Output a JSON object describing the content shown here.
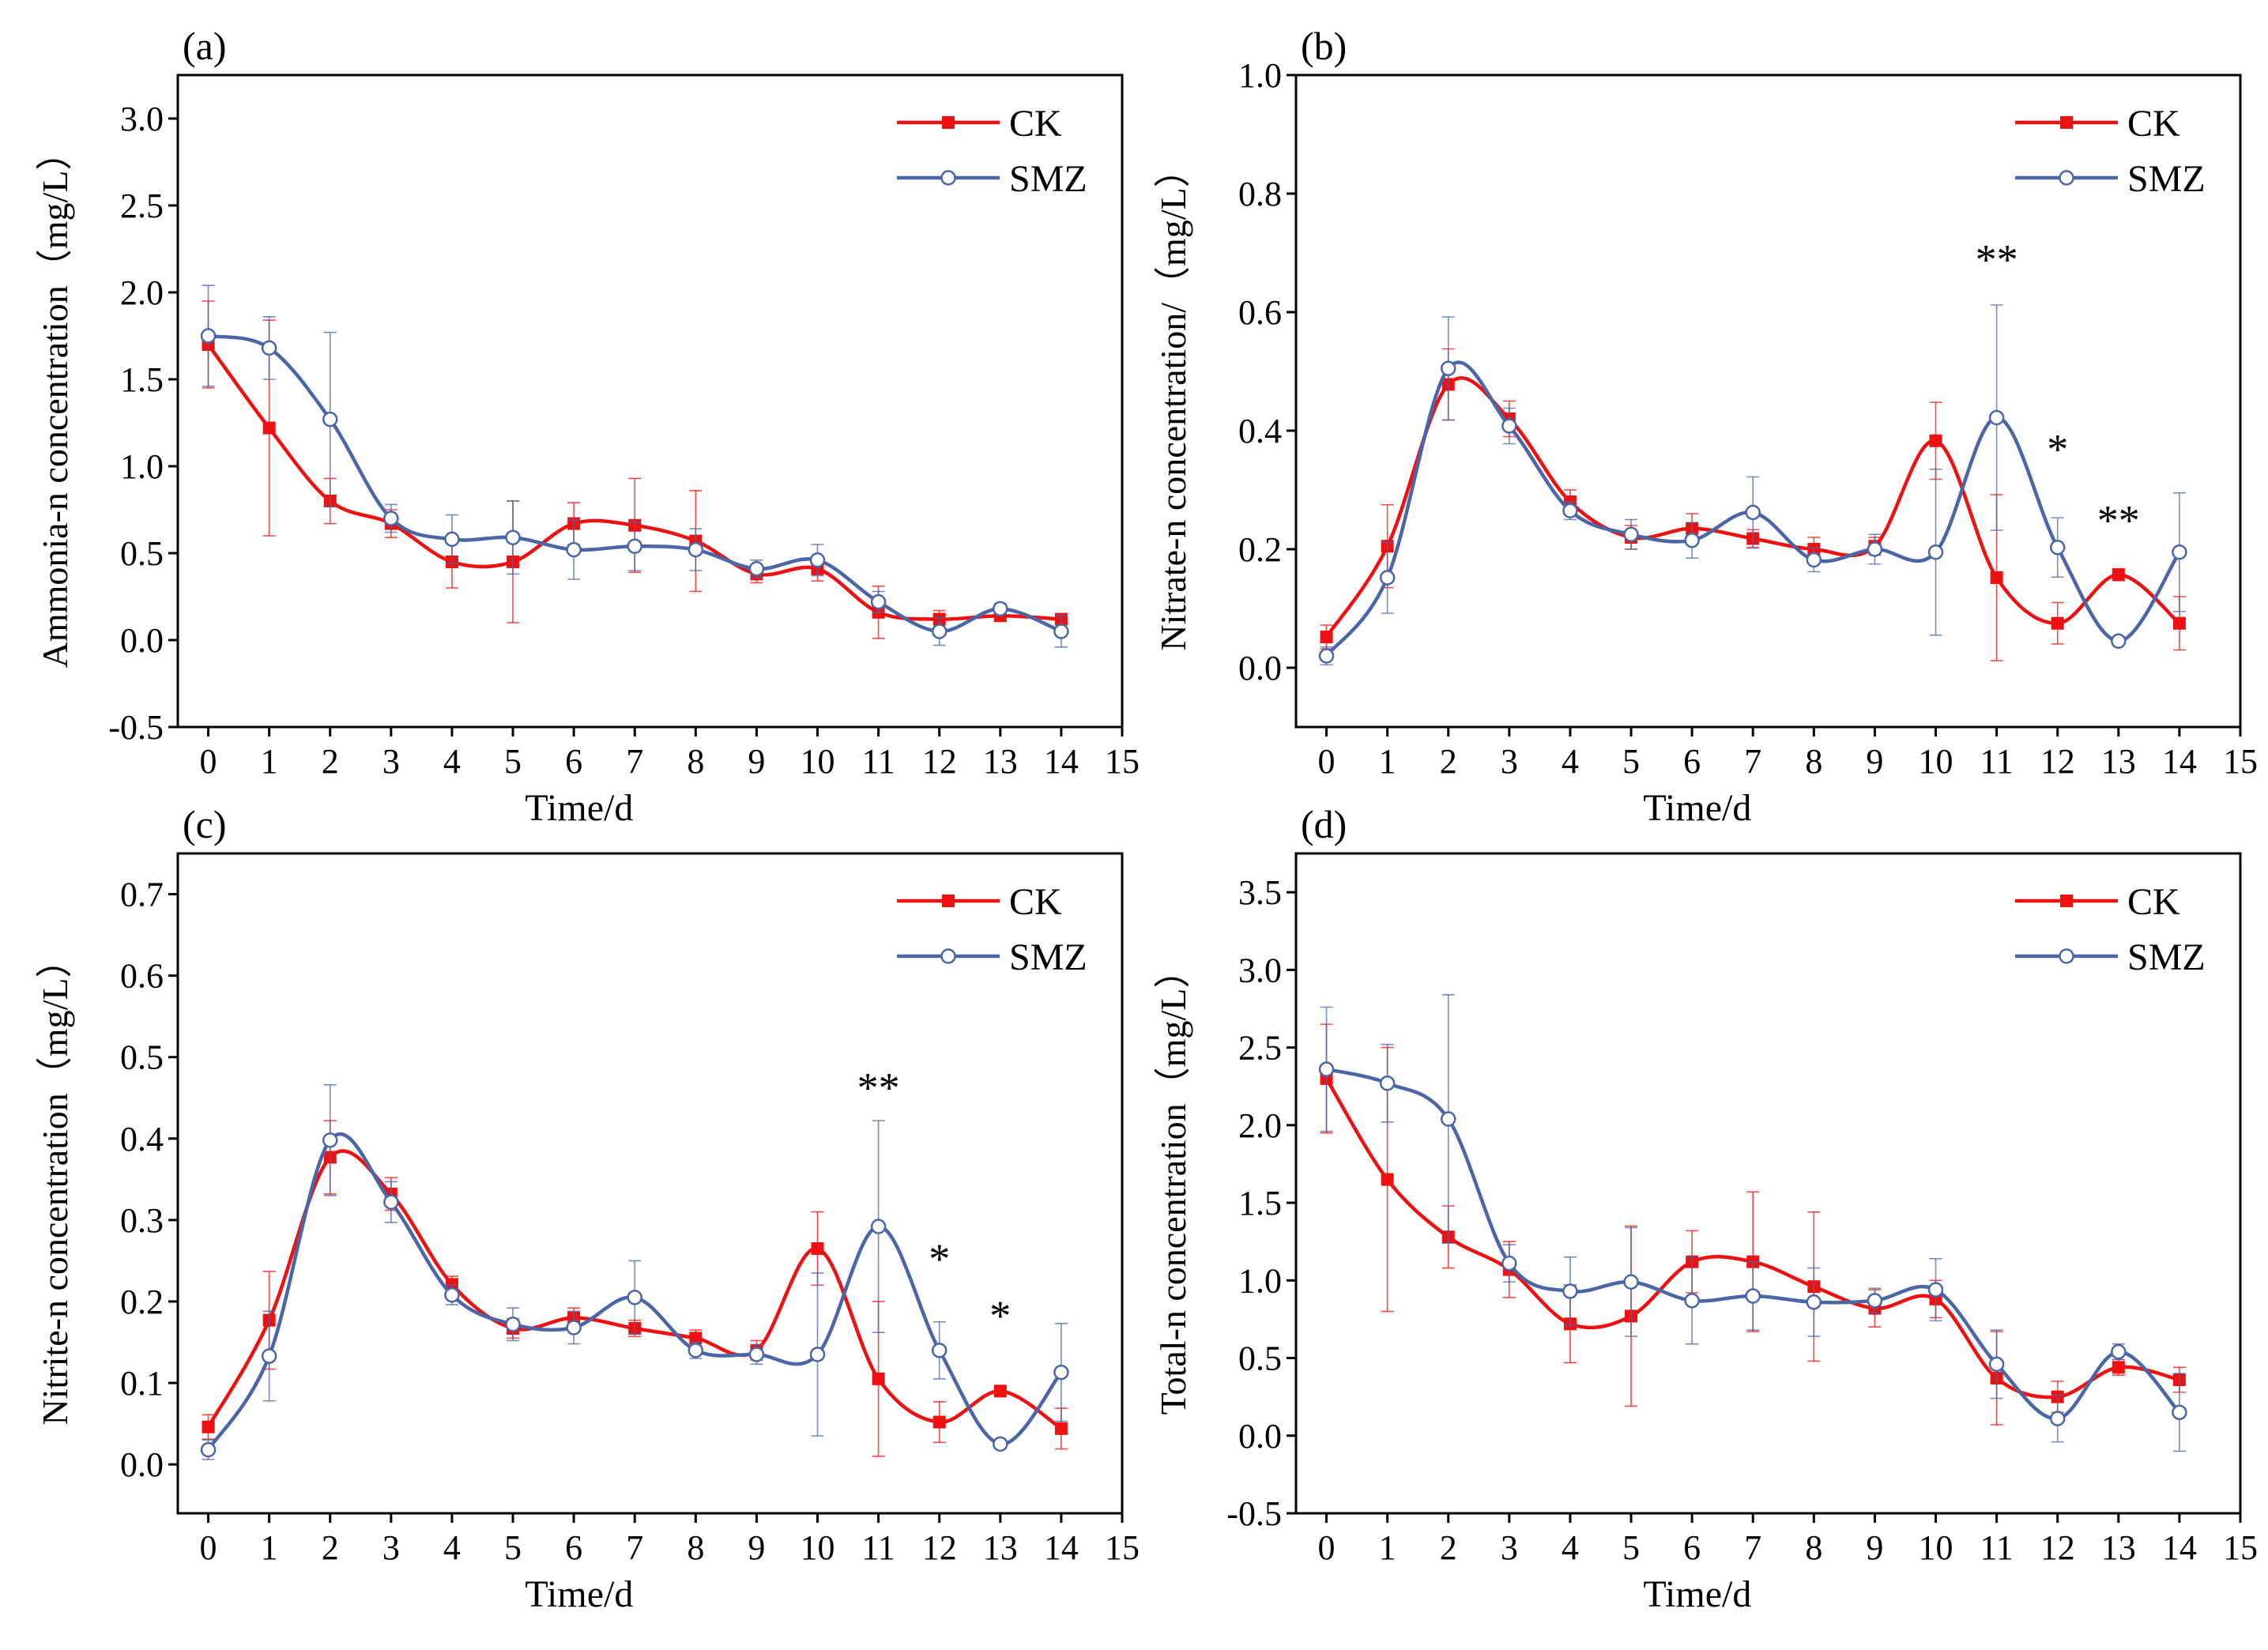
{
  "colors": {
    "CK": "#ee1111",
    "SMZ": "#4a66a6"
  },
  "chart_data": [
    {
      "type": "line",
      "panel_label": "(a)",
      "xlabel": "Time/d",
      "ylabel": "Ammonia-n concentration（mg/L）",
      "xlim": [
        -0.5,
        15
      ],
      "ylim": [
        -0.5,
        3.25
      ],
      "xticks": [
        0,
        1,
        2,
        3,
        4,
        5,
        6,
        7,
        8,
        9,
        10,
        11,
        12,
        13,
        14,
        15
      ],
      "yticks": [
        -0.5,
        0.0,
        0.5,
        1.0,
        1.5,
        2.0,
        2.5,
        3.0
      ],
      "ytick_labels": [
        "-0.5",
        "0.0",
        "0.5",
        "1.0",
        "1.5",
        "2.0",
        "2.5",
        "3.0"
      ],
      "legend_position": "top-right",
      "x": [
        0,
        1,
        2,
        3,
        4,
        5,
        6,
        7,
        8,
        9,
        10,
        11,
        12,
        13,
        14
      ],
      "series": [
        {
          "name": "CK",
          "marker": "filled-square",
          "values": [
            1.7,
            1.22,
            0.8,
            0.67,
            0.45,
            0.45,
            0.67,
            0.66,
            0.57,
            0.38,
            0.41,
            0.16,
            0.12,
            0.14,
            0.12
          ],
          "errors": [
            0.25,
            0.62,
            0.13,
            0.08,
            0.15,
            0.35,
            0.12,
            0.27,
            0.29,
            0.05,
            0.07,
            0.15,
            0.05,
            0.03,
            0.03
          ]
        },
        {
          "name": "SMZ",
          "marker": "open-circle",
          "values": [
            1.75,
            1.68,
            1.27,
            0.7,
            0.58,
            0.59,
            0.52,
            0.54,
            0.52,
            0.41,
            0.46,
            0.22,
            0.05,
            0.18,
            0.05
          ],
          "errors": [
            0.29,
            0.18,
            0.5,
            0.08,
            0.14,
            0.21,
            0.17,
            0.14,
            0.12,
            0.05,
            0.09,
            0.06,
            0.08,
            0.03,
            0.09
          ]
        }
      ],
      "annotations": []
    },
    {
      "type": "line",
      "panel_label": "(b)",
      "xlabel": "Time/d",
      "ylabel": "Nitrate-n concentration/（mg/L）",
      "xlim": [
        -0.5,
        15
      ],
      "ylim": [
        -0.1,
        1.0
      ],
      "xticks": [
        0,
        1,
        2,
        3,
        4,
        5,
        6,
        7,
        8,
        9,
        10,
        11,
        12,
        13,
        14,
        15
      ],
      "yticks": [
        0.0,
        0.2,
        0.4,
        0.6,
        0.8,
        1.0
      ],
      "ytick_labels": [
        "0.0",
        "0.2",
        "0.4",
        "0.6",
        "0.8",
        "1.0"
      ],
      "legend_position": "top-right",
      "x": [
        0,
        1,
        2,
        3,
        4,
        5,
        6,
        7,
        8,
        9,
        10,
        11,
        12,
        13,
        14
      ],
      "series": [
        {
          "name": "CK",
          "marker": "filled-square",
          "values": [
            0.052,
            0.205,
            0.478,
            0.42,
            0.28,
            0.22,
            0.235,
            0.218,
            0.2,
            0.205,
            0.383,
            0.152,
            0.075,
            0.157,
            0.075
          ],
          "errors": [
            0.02,
            0.07,
            0.06,
            0.03,
            0.02,
            0.02,
            0.025,
            0.015,
            0.02,
            0.015,
            0.065,
            0.14,
            0.035,
            0.01,
            0.045
          ]
        },
        {
          "name": "SMZ",
          "marker": "open-circle",
          "values": [
            0.02,
            0.152,
            0.505,
            0.408,
            0.265,
            0.225,
            0.215,
            0.262,
            0.182,
            0.2,
            0.195,
            0.422,
            0.203,
            0.045,
            0.195
          ],
          "errors": [
            0.015,
            0.06,
            0.087,
            0.03,
            0.015,
            0.025,
            0.03,
            0.06,
            0.02,
            0.025,
            0.14,
            0.19,
            0.05,
            0.005,
            0.1
          ]
        }
      ],
      "annotations": [
        {
          "text": "**",
          "x": 11,
          "y": 0.665
        },
        {
          "text": "*",
          "x": 12,
          "y": 0.345
        },
        {
          "text": "**",
          "x": 13,
          "y": 0.225
        }
      ]
    },
    {
      "type": "line",
      "panel_label": "(c)",
      "xlabel": "Time/d",
      "ylabel": "Nitrite-n concentration（mg/L）",
      "xlim": [
        -0.5,
        15
      ],
      "ylim": [
        -0.06,
        0.75
      ],
      "xticks": [
        0,
        1,
        2,
        3,
        4,
        5,
        6,
        7,
        8,
        9,
        10,
        11,
        12,
        13,
        14,
        15
      ],
      "yticks": [
        0.0,
        0.1,
        0.2,
        0.3,
        0.4,
        0.5,
        0.6,
        0.7
      ],
      "ytick_labels": [
        "0.0",
        "0.1",
        "0.2",
        "0.3",
        "0.4",
        "0.5",
        "0.6",
        "0.7"
      ],
      "legend_position": "top-right",
      "x": [
        0,
        1,
        2,
        3,
        4,
        5,
        6,
        7,
        8,
        9,
        10,
        11,
        12,
        13,
        14
      ],
      "series": [
        {
          "name": "CK",
          "marker": "filled-square",
          "values": [
            0.046,
            0.177,
            0.377,
            0.332,
            0.221,
            0.167,
            0.18,
            0.167,
            0.155,
            0.14,
            0.265,
            0.105,
            0.052,
            0.09,
            0.044
          ],
          "errors": [
            0.015,
            0.06,
            0.045,
            0.02,
            0.01,
            0.012,
            0.012,
            0.01,
            0.01,
            0.012,
            0.045,
            0.095,
            0.025,
            0.005,
            0.025
          ]
        },
        {
          "name": "SMZ",
          "marker": "open-circle",
          "values": [
            0.018,
            0.133,
            0.398,
            0.322,
            0.208,
            0.172,
            0.168,
            0.205,
            0.14,
            0.135,
            0.135,
            0.292,
            0.14,
            0.025,
            0.113
          ],
          "errors": [
            0.012,
            0.055,
            0.068,
            0.025,
            0.012,
            0.02,
            0.02,
            0.045,
            0.01,
            0.012,
            0.1,
            0.13,
            0.035,
            0.005,
            0.06
          ]
        }
      ],
      "annotations": [
        {
          "text": "**",
          "x": 11,
          "y": 0.445
        },
        {
          "text": "*",
          "x": 12,
          "y": 0.235
        },
        {
          "text": "*",
          "x": 13,
          "y": 0.165
        }
      ]
    },
    {
      "type": "line",
      "panel_label": "(d)",
      "xlabel": "Time/d",
      "ylabel": "Total-n concentration（mg/L）",
      "xlim": [
        -0.5,
        15
      ],
      "ylim": [
        -0.5,
        3.75
      ],
      "xticks": [
        0,
        1,
        2,
        3,
        4,
        5,
        6,
        7,
        8,
        9,
        10,
        11,
        12,
        13,
        14,
        15
      ],
      "yticks": [
        -0.5,
        0.0,
        0.5,
        1.0,
        1.5,
        2.0,
        2.5,
        3.0,
        3.5
      ],
      "ytick_labels": [
        "-0.5",
        "0.0",
        "0.5",
        "1.0",
        "1.5",
        "2.0",
        "2.5",
        "3.0",
        "3.5"
      ],
      "legend_position": "top-right",
      "x": [
        0,
        1,
        2,
        3,
        4,
        5,
        6,
        7,
        8,
        9,
        10,
        11,
        12,
        13,
        14
      ],
      "series": [
        {
          "name": "CK",
          "marker": "filled-square",
          "values": [
            2.3,
            1.65,
            1.28,
            1.07,
            0.72,
            0.77,
            1.12,
            1.12,
            0.96,
            0.82,
            0.88,
            0.37,
            0.25,
            0.44,
            0.36
          ],
          "errors": [
            0.35,
            0.85,
            0.2,
            0.18,
            0.25,
            0.58,
            0.2,
            0.45,
            0.48,
            0.12,
            0.12,
            0.3,
            0.1,
            0.05,
            0.08
          ]
        },
        {
          "name": "SMZ",
          "marker": "open-circle",
          "values": [
            2.36,
            2.27,
            2.04,
            1.11,
            0.93,
            0.99,
            0.87,
            0.9,
            0.86,
            0.87,
            0.94,
            0.46,
            0.11,
            0.54,
            0.15
          ],
          "errors": [
            0.4,
            0.25,
            0.8,
            0.12,
            0.22,
            0.35,
            0.28,
            0.22,
            0.22,
            0.08,
            0.2,
            0.22,
            0.15,
            0.05,
            0.25
          ]
        }
      ],
      "annotations": []
    }
  ]
}
